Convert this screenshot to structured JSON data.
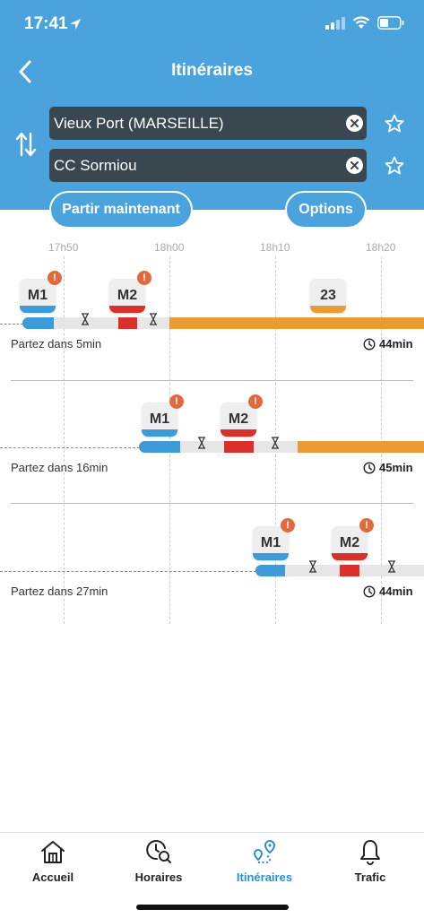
{
  "status": {
    "time": "17:41"
  },
  "header": {
    "title": "Itinéraires"
  },
  "search": {
    "from": "Vieux Port (MARSEILLE)",
    "to": "CC Sormiou",
    "depart_label": "Partir maintenant",
    "options_label": "Options"
  },
  "timeline": {
    "ticks": [
      "17h50",
      "18h00",
      "18h10",
      "18h20"
    ]
  },
  "colors": {
    "header": "#4aa3dc",
    "m1": "#3f9bd8",
    "m2": "#d9302b",
    "bus": "#e89c33",
    "alert": "#e06a3b",
    "active_tab": "#2a8fd0"
  },
  "trips": [
    {
      "lines": [
        {
          "name": "M1",
          "alert": "!"
        },
        {
          "name": "M2",
          "alert": "!"
        },
        {
          "name": "23"
        }
      ],
      "depart": "Partez dans 5min",
      "duration": "44min"
    },
    {
      "lines": [
        {
          "name": "M1",
          "alert": "!"
        },
        {
          "name": "M2",
          "alert": "!"
        }
      ],
      "depart": "Partez dans 16min",
      "duration": "45min"
    },
    {
      "lines": [
        {
          "name": "M1",
          "alert": "!"
        },
        {
          "name": "M2",
          "alert": "!"
        }
      ],
      "depart": "Partez dans 27min",
      "duration": "44min"
    }
  ],
  "tabs": [
    {
      "label": "Accueil",
      "icon": "home-icon"
    },
    {
      "label": "Horaires",
      "icon": "clock-search-icon"
    },
    {
      "label": "Itinéraires",
      "icon": "route-icon",
      "active": true
    },
    {
      "label": "Trafic",
      "icon": "bell-icon"
    }
  ]
}
